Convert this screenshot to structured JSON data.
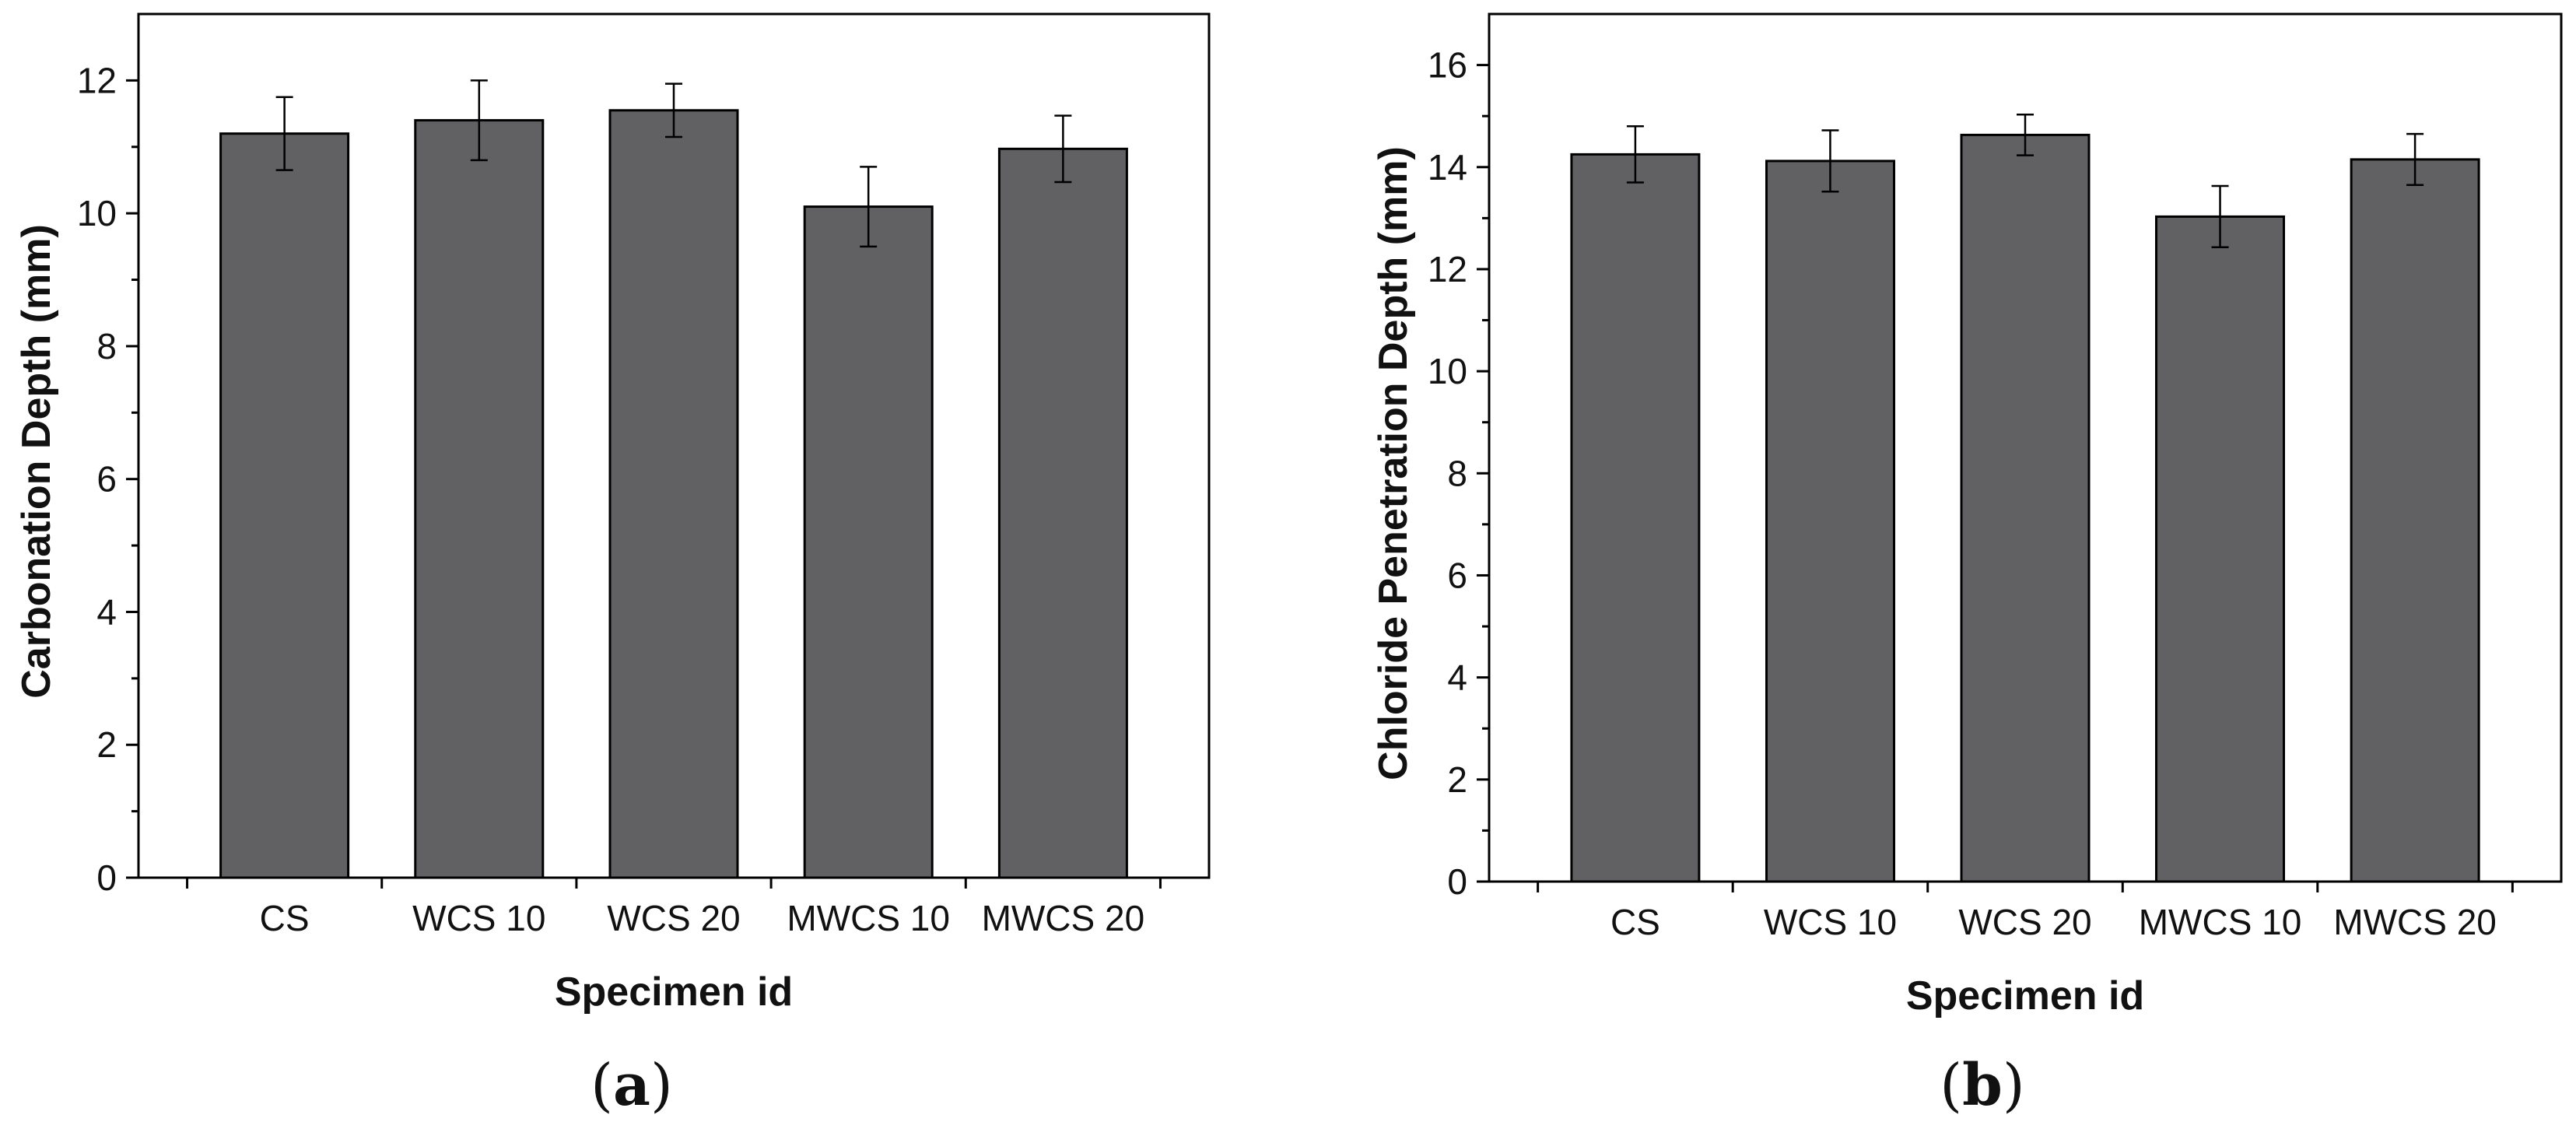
{
  "bar_color": "#616163",
  "chart_data": [
    {
      "type": "bar",
      "panel_label": "a",
      "xlabel": "Specimen id",
      "ylabel": "Carbonation Depth (mm)",
      "ylim": [
        0,
        13
      ],
      "yticks": [
        0,
        2,
        4,
        6,
        8,
        10,
        12
      ],
      "categories": [
        "CS",
        "WCS 10",
        "WCS 20",
        "MWCS 10",
        "MWCS 20"
      ],
      "values": [
        11.2,
        11.4,
        11.55,
        10.1,
        10.97
      ],
      "errors": [
        0.55,
        0.6,
        0.4,
        0.6,
        0.5
      ]
    },
    {
      "type": "bar",
      "panel_label": "b",
      "xlabel": "Specimen id",
      "ylabel": "Chloride Penetration Depth (mm)",
      "ylim": [
        0,
        17
      ],
      "yticks": [
        0,
        2,
        4,
        6,
        8,
        10,
        12,
        14,
        16
      ],
      "categories": [
        "CS",
        "WCS 10",
        "WCS 20",
        "MWCS 10",
        "MWCS 20"
      ],
      "values": [
        14.25,
        14.12,
        14.63,
        13.03,
        14.15
      ],
      "errors": [
        0.55,
        0.6,
        0.4,
        0.6,
        0.5
      ]
    }
  ]
}
